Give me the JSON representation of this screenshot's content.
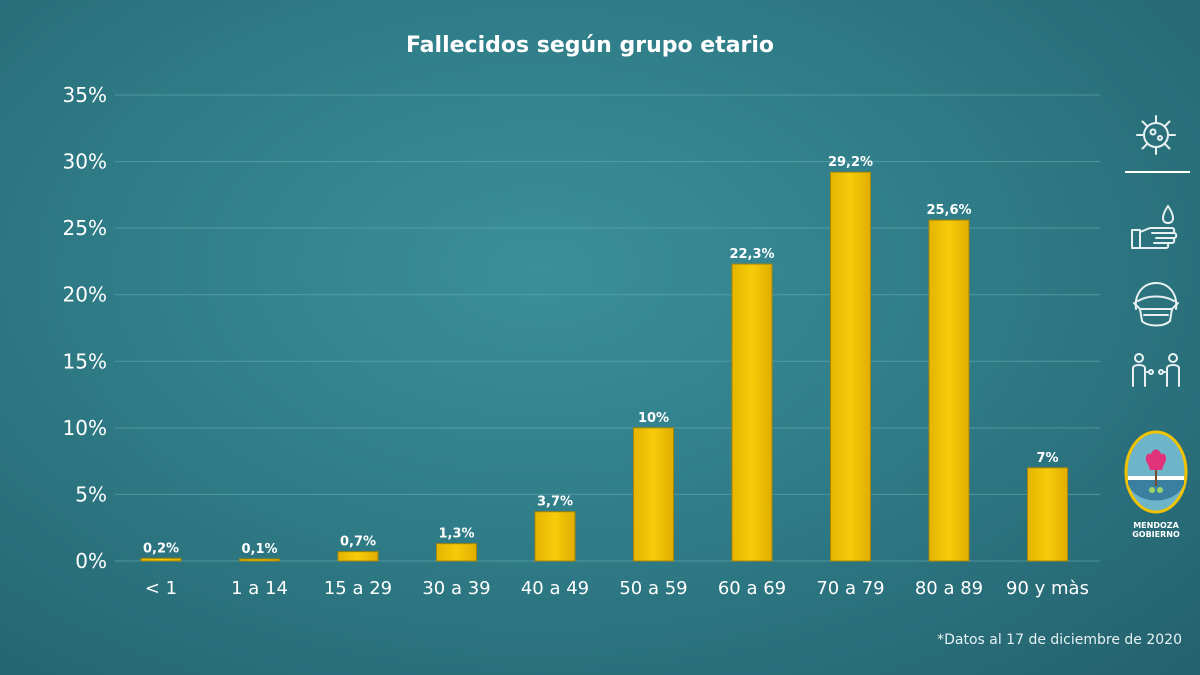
{
  "chart_data": {
    "type": "bar",
    "title": "Fallecidos según grupo etario",
    "categories": [
      "< 1",
      "1 a 14",
      "15 a 29",
      "30 a 39",
      "40 a 49",
      "50 a 59",
      "60 a 69",
      "70 a 79",
      "80 a 89",
      "90 y màs"
    ],
    "values": [
      0.2,
      0.1,
      0.7,
      1.3,
      3.7,
      10,
      22.3,
      29.2,
      25.6,
      7
    ],
    "data_labels": [
      "0,2%",
      "0,1%",
      "0,7%",
      "1,3%",
      "3,7%",
      "10%",
      "22,3%",
      "29,2%",
      "25,6%",
      "7%"
    ],
    "ylim": [
      0,
      35
    ],
    "yticks": [
      0,
      5,
      10,
      15,
      20,
      25,
      30,
      35
    ],
    "ytick_labels": [
      "0%",
      "5%",
      "10%",
      "15%",
      "20%",
      "25%",
      "30%",
      "35%"
    ],
    "grid": true,
    "bar_color": "#f0c300"
  },
  "footnote": "*Datos al 17 de diciembre de 2020",
  "sidebar": {
    "icons": [
      "virus-icon",
      "hand-wash-icon",
      "face-mask-icon",
      "social-distance-icon"
    ],
    "logo_lines": [
      "MENDOZA",
      "GOBIERNO"
    ]
  },
  "colors": {
    "background": "#2f7d88",
    "bar": "#f0c300",
    "text": "#ffffff"
  }
}
